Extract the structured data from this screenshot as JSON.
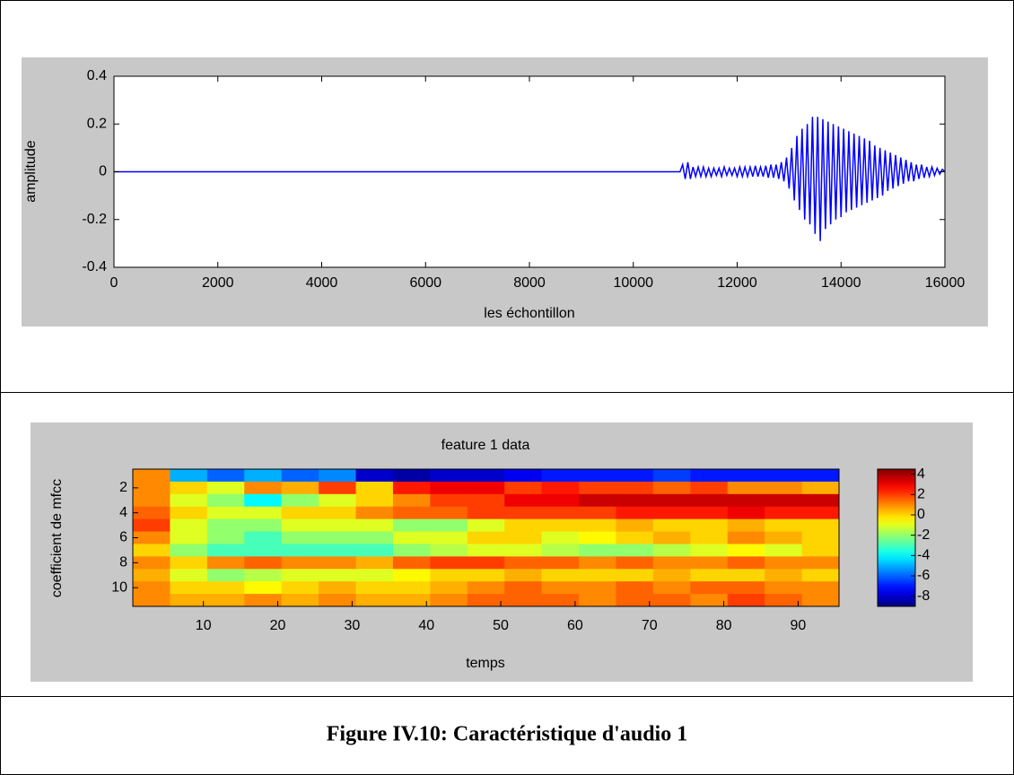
{
  "chart_data": [
    {
      "type": "line",
      "xlabel": "les échontillon",
      "ylabel": "amplitude",
      "x": [
        0,
        10900,
        10950,
        11000,
        11050,
        11100,
        11150,
        11200,
        11250,
        11300,
        11350,
        11400,
        11450,
        11500,
        11550,
        11600,
        11650,
        11700,
        11750,
        11800,
        11850,
        11900,
        11950,
        12000,
        12050,
        12100,
        12150,
        12200,
        12250,
        12300,
        12350,
        12400,
        12450,
        12500,
        12550,
        12600,
        12650,
        12700,
        12750,
        12800,
        12850,
        12900,
        12950,
        13000,
        13050,
        13100,
        13150,
        13200,
        13250,
        13300,
        13350,
        13400,
        13450,
        13500,
        13550,
        13600,
        13650,
        13700,
        13750,
        13800,
        13850,
        13900,
        13950,
        14000,
        14050,
        14100,
        14150,
        14200,
        14250,
        14300,
        14350,
        14400,
        14450,
        14500,
        14550,
        14600,
        14650,
        14700,
        14750,
        14800,
        14850,
        14900,
        14950,
        15000,
        15050,
        15100,
        15150,
        15200,
        15250,
        15300,
        15350,
        15400,
        15450,
        15500,
        15550,
        15600,
        15650,
        15700,
        15750,
        15800,
        15850,
        15900,
        15950,
        16000
      ],
      "series": [
        {
          "color": "#0000ff",
          "values": [
            0,
            0,
            0.03,
            -0.03,
            0.04,
            -0.03,
            0.02,
            -0.02,
            0.02,
            -0.02,
            0.02,
            -0.02,
            0.015,
            -0.02,
            0.015,
            -0.015,
            0.015,
            -0.02,
            0.02,
            -0.015,
            0.015,
            -0.015,
            0.015,
            -0.02,
            0.02,
            -0.02,
            0.02,
            -0.02,
            0.02,
            -0.02,
            0.025,
            -0.02,
            0.02,
            -0.02,
            0.025,
            -0.025,
            0.03,
            -0.025,
            0.03,
            -0.03,
            0.04,
            -0.04,
            0.06,
            -0.07,
            0.1,
            -0.12,
            0.15,
            -0.16,
            0.18,
            -0.2,
            0.2,
            -0.22,
            0.23,
            -0.26,
            0.23,
            -0.29,
            0.22,
            -0.24,
            0.21,
            -0.22,
            0.2,
            -0.2,
            0.19,
            -0.19,
            0.18,
            -0.17,
            0.17,
            -0.16,
            0.16,
            -0.15,
            0.15,
            -0.14,
            0.14,
            -0.13,
            0.13,
            -0.12,
            0.11,
            -0.11,
            0.1,
            -0.1,
            0.09,
            -0.08,
            0.08,
            -0.07,
            0.07,
            -0.06,
            0.06,
            -0.05,
            0.05,
            -0.04,
            0.04,
            -0.04,
            0.03,
            -0.03,
            0.03,
            -0.025,
            0.02,
            -0.02,
            0.02,
            -0.015,
            0.015,
            -0.01,
            0.01,
            0
          ]
        }
      ],
      "xlim": [
        0,
        16000
      ],
      "ylim": [
        -0.4,
        0.4
      ],
      "xticks": [
        0,
        2000,
        4000,
        6000,
        8000,
        10000,
        12000,
        14000,
        16000
      ],
      "yticks": [
        -0.4,
        -0.2,
        0,
        0.2,
        0.4
      ]
    },
    {
      "type": "heatmap",
      "title": "feature 1 data",
      "xlabel": "temps",
      "ylabel": "coefficient de mfcc",
      "xbins": [
        0.5,
        5.5,
        10.5,
        15.5,
        20.5,
        25.5,
        30.5,
        35.5,
        40.5,
        45.5,
        50.5,
        55.5,
        60.5,
        65.5,
        70.5,
        75.5,
        80.5,
        85.5,
        90.5,
        95.5
      ],
      "y": [
        1,
        2,
        3,
        4,
        5,
        6,
        7,
        8,
        9,
        10,
        11
      ],
      "values": [
        [
          1,
          -5,
          -6,
          -5,
          -6,
          -5.5,
          -8,
          -8.5,
          -8,
          -8,
          -7.5,
          -7,
          -7,
          -7,
          -6.5,
          -7,
          -7,
          -7,
          -7
        ],
        [
          1,
          0,
          -1,
          1,
          0.5,
          2,
          0,
          2.5,
          3,
          3,
          2,
          2.5,
          2,
          2,
          1.5,
          2,
          1,
          1,
          0.5
        ],
        [
          1,
          -1,
          -2,
          -4,
          -2,
          -1,
          0,
          1,
          2,
          2,
          3,
          3,
          3.5,
          3.5,
          3.5,
          3.5,
          3.5,
          3.5,
          3.5
        ],
        [
          1.5,
          0,
          -1,
          -1,
          0,
          0,
          1,
          1.5,
          1.5,
          2,
          2,
          2,
          2,
          2.5,
          2.5,
          2.5,
          3,
          2.5,
          2.5
        ],
        [
          2,
          -1,
          -2,
          -2,
          -1,
          -1,
          -1,
          -2,
          -2,
          -1,
          0,
          0,
          0,
          0.5,
          0,
          0,
          0.5,
          0,
          0
        ],
        [
          1,
          -1,
          -2,
          -3,
          -2,
          -2,
          -2,
          -1,
          -1,
          0,
          0,
          -1,
          -0.5,
          0,
          0.5,
          0,
          1,
          0.5,
          0
        ],
        [
          0,
          -2,
          -3,
          -3,
          -3,
          -3,
          -3,
          -2,
          -1.5,
          -1,
          -1,
          -1.5,
          -2,
          -2,
          -1.5,
          -1,
          -0.5,
          -1,
          0
        ],
        [
          1,
          0,
          1,
          1.5,
          1,
          1,
          0.5,
          1.5,
          2,
          2,
          1.5,
          1.5,
          1,
          1.5,
          1,
          1,
          1.5,
          1,
          1
        ],
        [
          0.5,
          -1,
          -2,
          -1.5,
          -1,
          -1,
          -1,
          -0.5,
          0,
          0,
          0.5,
          0,
          0,
          0,
          0.5,
          0,
          0,
          0.5,
          0
        ],
        [
          1,
          0,
          0,
          -0.5,
          0,
          0.5,
          0,
          0,
          0.5,
          1,
          1.5,
          1,
          1,
          1.5,
          1,
          1.5,
          1.5,
          1,
          1
        ],
        [
          1,
          0.5,
          0.5,
          1,
          0.5,
          1,
          0.5,
          0.5,
          1,
          1.5,
          1.5,
          1.5,
          1,
          1.5,
          1.5,
          1,
          2,
          1.5,
          1
        ]
      ],
      "xlim": [
        0.5,
        95.5
      ],
      "ylim": [
        0.5,
        11.5
      ],
      "xticks": [
        10,
        20,
        30,
        40,
        50,
        60,
        70,
        80,
        90
      ],
      "yticks": [
        2,
        4,
        6,
        8,
        10
      ],
      "colormap": "jet",
      "clim": [
        -9,
        4.5
      ],
      "cticks": [
        -8,
        -6,
        -4,
        -2,
        0,
        2,
        4
      ]
    }
  ],
  "caption": "Figure IV.10: Caractéristique d'audio 1"
}
